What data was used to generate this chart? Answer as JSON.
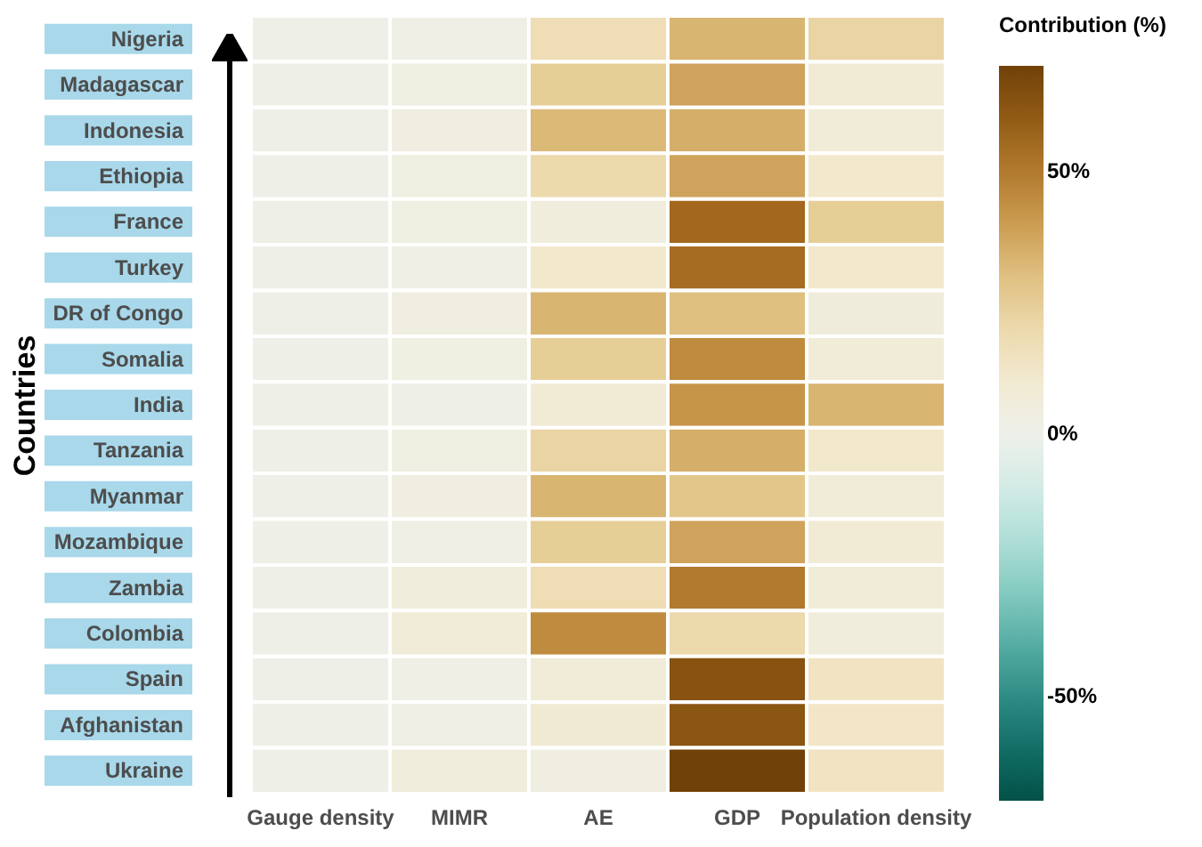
{
  "chart_data": {
    "type": "heatmap",
    "ylabel": "Countries",
    "clabel": "Contribution (%)",
    "categories": [
      "Gauge density",
      "MIMR",
      "AE",
      "GDP",
      "Population density"
    ],
    "y_categories": [
      "Nigeria",
      "Madagascar",
      "Indonesia",
      "Ethiopia",
      "France",
      "Turkey",
      "DR of Congo",
      "Somalia",
      "India",
      "Tanzania",
      "Myanmar",
      "Mozambique",
      "Zambia",
      "Colombia",
      "Spain",
      "Afghanistan",
      "Ukraine"
    ],
    "cells": [
      [
        1,
        2,
        18,
        33,
        22
      ],
      [
        1,
        3,
        25,
        38,
        8
      ],
      [
        1,
        4,
        32,
        35,
        7
      ],
      [
        1,
        3,
        20,
        38,
        12
      ],
      [
        1,
        3,
        5,
        55,
        25
      ],
      [
        1,
        2,
        12,
        54,
        12
      ],
      [
        1,
        4,
        33,
        30,
        6
      ],
      [
        1,
        3,
        25,
        45,
        7
      ],
      [
        1,
        1,
        8,
        42,
        33
      ],
      [
        1,
        3,
        22,
        35,
        12
      ],
      [
        1,
        4,
        33,
        28,
        7
      ],
      [
        1,
        2,
        25,
        38,
        8
      ],
      [
        1,
        5,
        18,
        50,
        7
      ],
      [
        1,
        7,
        45,
        20,
        5
      ],
      [
        1,
        2,
        7,
        63,
        15
      ],
      [
        1,
        2,
        9,
        62,
        14
      ],
      [
        1,
        5,
        4,
        70,
        15
      ]
    ],
    "clim": [
      -70,
      70
    ],
    "cticks": [
      {
        "value": -50,
        "label": "-50%"
      },
      {
        "value": 0,
        "label": "0%"
      },
      {
        "value": 50,
        "label": "50%"
      }
    ]
  }
}
